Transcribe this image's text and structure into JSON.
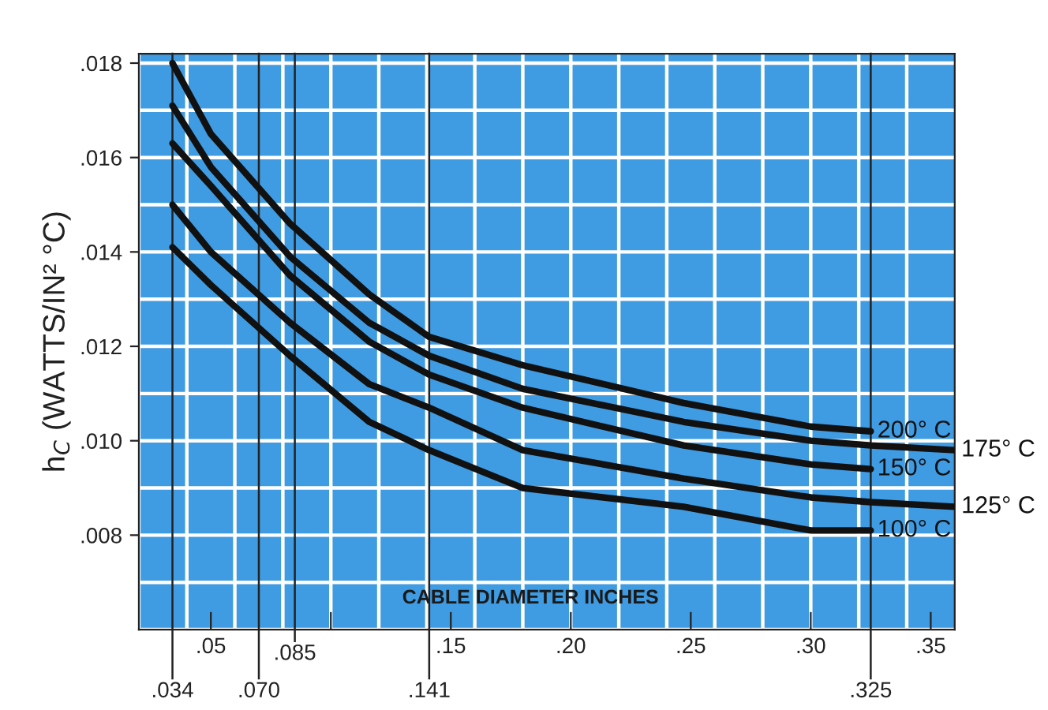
{
  "chart_data": {
    "type": "line",
    "xlabel": "CABLE DIAMETER INCHES",
    "ylabel": "h$_{C}$ (WATTS/IN² °C)",
    "x": [
      0.034,
      0.05,
      0.083,
      0.116,
      0.141,
      0.18,
      0.247,
      0.3,
      0.325
    ],
    "series": [
      {
        "name": "200° C",
        "color": "#111111",
        "values": [
          0.018,
          0.0165,
          0.0146,
          0.0131,
          0.0122,
          0.0116,
          0.0108,
          0.0103,
          0.0102
        ]
      },
      {
        "name": "175° C",
        "color": "#111111",
        "x": [
          0.034,
          0.05,
          0.083,
          0.116,
          0.141,
          0.18,
          0.247,
          0.3,
          0.325,
          0.36
        ],
        "values": [
          0.0171,
          0.0158,
          0.0139,
          0.0125,
          0.0118,
          0.0111,
          0.0104,
          0.01,
          0.0099,
          0.0098
        ]
      },
      {
        "name": "150° C",
        "color": "#111111",
        "values": [
          0.0163,
          0.0154,
          0.0135,
          0.0121,
          0.0114,
          0.0107,
          0.0099,
          0.0095,
          0.0094
        ]
      },
      {
        "name": "125° C",
        "color": "#111111",
        "x": [
          0.034,
          0.05,
          0.083,
          0.116,
          0.141,
          0.18,
          0.247,
          0.3,
          0.325,
          0.36
        ],
        "values": [
          0.015,
          0.014,
          0.0125,
          0.0112,
          0.0107,
          0.0098,
          0.0092,
          0.0088,
          0.0087,
          0.0086
        ]
      },
      {
        "name": "100° C",
        "color": "#111111",
        "values": [
          0.0141,
          0.0133,
          0.0118,
          0.0104,
          0.0098,
          0.009,
          0.0086,
          0.0081,
          0.0081
        ]
      }
    ],
    "xlim": [
      0.02,
      0.36
    ],
    "ylim": [
      0.006,
      0.0182
    ],
    "xticks": [
      {
        "value": 0.05,
        "label": ".05"
      },
      {
        "value": 0.1,
        "label": null
      },
      {
        "value": 0.15,
        "label": ".15"
      },
      {
        "value": 0.2,
        "label": ".20"
      },
      {
        "value": 0.25,
        "label": ".25"
      },
      {
        "value": 0.3,
        "label": ".30"
      },
      {
        "value": 0.35,
        "label": ".35"
      }
    ],
    "yticks": [
      {
        "value": 0.008,
        "label": ".008"
      },
      {
        "value": 0.01,
        "label": ".010"
      },
      {
        "value": 0.012,
        "label": ".012"
      },
      {
        "value": 0.014,
        "label": ".014"
      },
      {
        "value": 0.016,
        "label": ".016"
      },
      {
        "value": 0.018,
        "label": ".018"
      }
    ],
    "ref_lines": [
      {
        "axis": "x",
        "value": 0.034,
        "label": ".034"
      },
      {
        "axis": "x",
        "value": 0.07,
        "label": ".070"
      },
      {
        "axis": "x",
        "value": 0.085,
        "label": ".085"
      },
      {
        "axis": "x",
        "value": 0.141,
        "label": ".141"
      },
      {
        "axis": "x",
        "value": 0.325,
        "label": ".325"
      }
    ],
    "grid": true,
    "marker": "none",
    "line_style": "solid",
    "legend": false
  }
}
